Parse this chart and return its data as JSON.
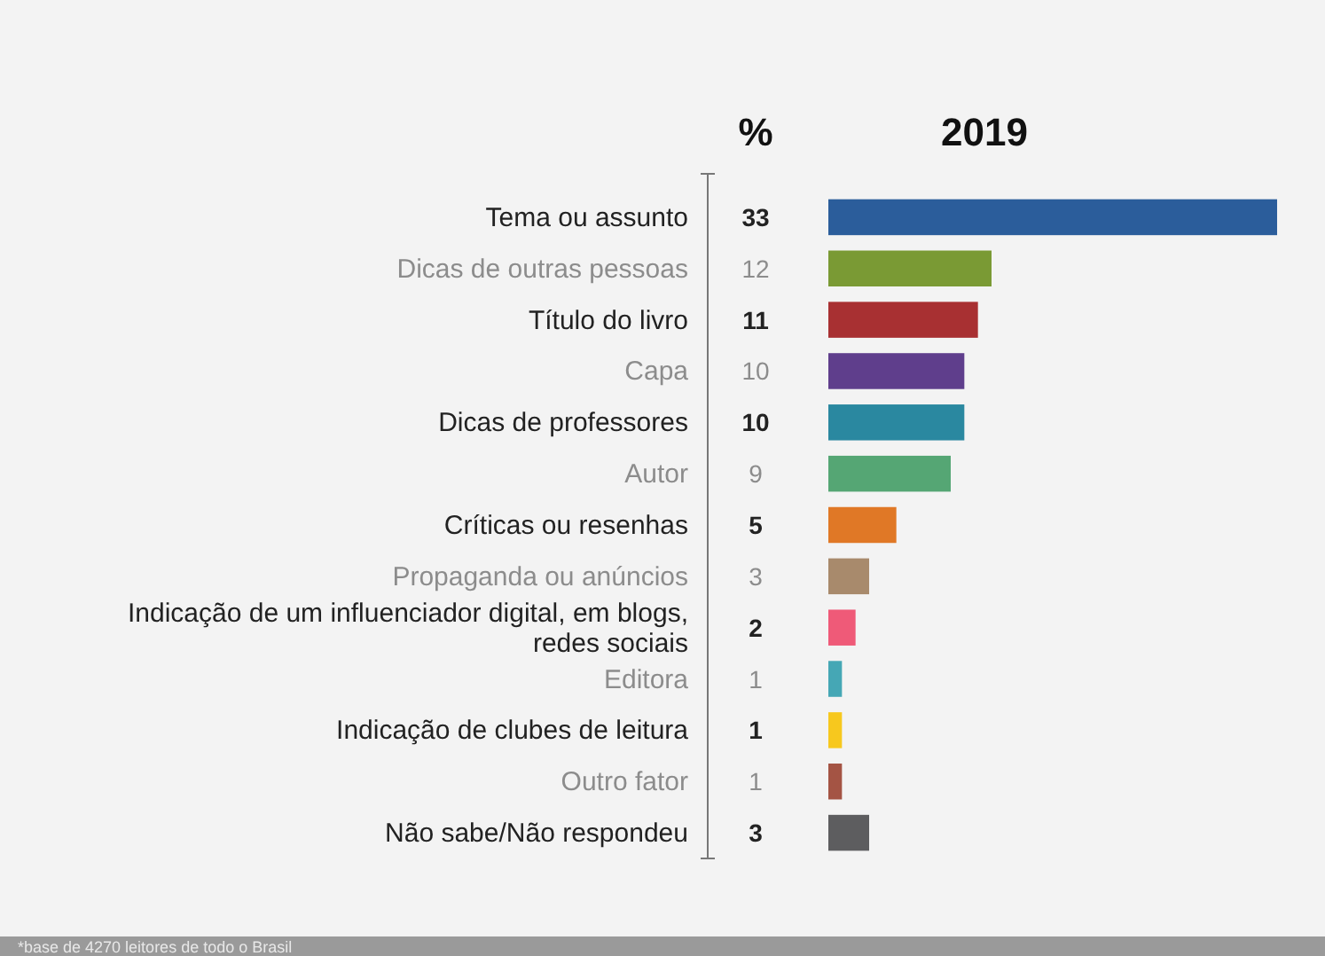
{
  "chart_data": {
    "type": "bar",
    "orientation": "horizontal",
    "title": "2019",
    "categories": [
      "Tema ou assunto",
      "Dicas de outras pessoas",
      "Título do livro",
      "Capa",
      "Dicas de professores",
      "Autor",
      "Críticas ou resenhas",
      "Propaganda ou anúncios",
      "Indicação de um influenciador digital, em blogs, redes sociais",
      "Editora",
      "Indicação de clubes de leitura",
      "Outro fator",
      "Não sabe/Não respondeu"
    ],
    "values": [
      33,
      12,
      11,
      10,
      10,
      9,
      5,
      3,
      2,
      1,
      1,
      1,
      3
    ],
    "colors": [
      "#2b5d9b",
      "#7a9a34",
      "#a83032",
      "#5f3e8c",
      "#2a88a0",
      "#55a674",
      "#e07826",
      "#a88a6c",
      "#ef5a78",
      "#45a7b5",
      "#f7c81e",
      "#a45444",
      "#5d5d5f"
    ],
    "data_labels": true,
    "annotations": [
      "%",
      "*base de 4270 leitores de todo o Brasil"
    ]
  }
}
